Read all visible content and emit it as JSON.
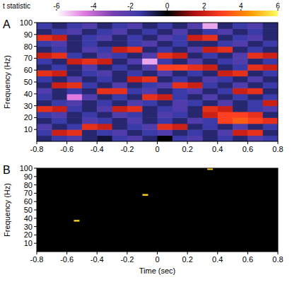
{
  "chart_data": [
    {
      "type": "heatmap",
      "title": "A",
      "ylabel": "Frequency (Hz)",
      "xlim": [
        -0.8,
        0.8
      ],
      "ylim": [
        0,
        100
      ],
      "xticks": [
        -0.8,
        -0.6,
        -0.4,
        -0.2,
        0,
        0.2,
        0.4,
        0.6,
        0.8
      ],
      "yticks": [
        10,
        20,
        30,
        40,
        50,
        60,
        70,
        80,
        90,
        100
      ],
      "x": [
        -0.75,
        -0.65,
        -0.55,
        -0.45,
        -0.35,
        -0.25,
        -0.15,
        -0.05,
        0.05,
        0.15,
        0.25,
        0.35,
        0.45,
        0.55,
        0.65,
        0.75
      ],
      "y": [
        2.5,
        7.5,
        12.5,
        17.5,
        22.5,
        27.5,
        32.5,
        37.5,
        42.5,
        47.5,
        52.5,
        57.5,
        62.5,
        67.5,
        72.5,
        77.5,
        82.5,
        87.5,
        92.5,
        97.5
      ],
      "cells": [
        [
          -1,
          -1.5,
          -2,
          -1,
          -0.5,
          -1.5,
          -2,
          -1,
          0,
          -1.5,
          -2,
          -1,
          -1.5,
          -1,
          -2,
          -1.5
        ],
        [
          -1.5,
          2,
          2.5,
          -1,
          -1.5,
          -2,
          -1,
          -1.5,
          -2,
          -1,
          -1.5,
          -1,
          -2,
          2,
          2.5,
          -1
        ],
        [
          -2,
          -1,
          -1.5,
          2.5,
          2,
          -1,
          -1.5,
          -2,
          2.5,
          2,
          -1,
          -1.5,
          -1,
          -2,
          -1,
          -1.5
        ],
        [
          -1,
          -1.5,
          -1,
          -2,
          -1.5,
          -1,
          -2,
          -1,
          -1.5,
          -1,
          -2,
          -1.5,
          3,
          3.5,
          3,
          2.5
        ],
        [
          -1.5,
          -2,
          -1,
          -1.5,
          -1,
          -2,
          -1.5,
          -1,
          -2,
          -1.5,
          -1,
          2,
          3,
          3,
          2.5,
          -1
        ],
        [
          2.5,
          2,
          -1.5,
          -1,
          -2,
          2,
          2.5,
          -1,
          -1.5,
          -2,
          -1,
          2.5,
          2,
          -1,
          -1.5,
          -2
        ],
        [
          -1,
          -1.5,
          -2,
          -1,
          -1.5,
          -1,
          -2,
          -1.5,
          -1,
          -2,
          -1.5,
          -1,
          -2,
          -1,
          -1.5,
          2
        ],
        [
          -1.5,
          -1,
          -4.5,
          -2,
          -1,
          -1.5,
          -1,
          2.5,
          2,
          -1.5,
          -1,
          -2,
          -1,
          -1.5,
          -1,
          -1.5
        ],
        [
          -2,
          -1,
          -1.5,
          -1,
          2.5,
          2.5,
          -1.5,
          -2,
          -1,
          -1.5,
          -2,
          -1,
          -1.5,
          2,
          2.5,
          -1
        ],
        [
          -1,
          2,
          2.5,
          -1.5,
          -1,
          -2,
          -1,
          -1.5,
          -2,
          2.5,
          2,
          -1.5,
          -1,
          -2,
          -1,
          -1.5
        ],
        [
          -1.5,
          -1,
          -2,
          -1,
          -1.5,
          -1,
          2,
          2.5,
          -1,
          -1.5,
          -1,
          -2,
          -1.5,
          -1,
          -2,
          -1
        ],
        [
          2.5,
          2,
          -1,
          -1.5,
          -2,
          -1,
          -1.5,
          -1,
          -2,
          -1,
          -1.5,
          -1,
          2,
          2.5,
          -1,
          -1.5
        ],
        [
          -1,
          -1.5,
          -1,
          -2,
          -1,
          -1.5,
          -1,
          -2,
          3,
          3,
          2.5,
          2,
          -1,
          -1.5,
          2.5,
          2
        ],
        [
          -1.5,
          -1,
          2,
          2.5,
          2,
          -1,
          -2,
          -5,
          -1.5,
          -1,
          -2,
          -1,
          -1.5,
          -2,
          -1,
          -1.5
        ],
        [
          2,
          2.5,
          -1.5,
          -1,
          -2,
          -1.5,
          -1,
          -2,
          2.5,
          2,
          -1,
          -1.5,
          -1,
          -2,
          2.5,
          2
        ],
        [
          -1,
          -1.5,
          -1,
          -2,
          -1.5,
          2,
          2.5,
          -1,
          -1.5,
          -1,
          -2,
          2,
          2.5,
          -1,
          -1.5,
          -1
        ],
        [
          -1.5,
          -2,
          -1,
          -1.5,
          -1,
          -1,
          -1.5,
          -2,
          -1,
          -1.5,
          -1,
          -1,
          -1.5,
          -2,
          -1,
          -1.5
        ],
        [
          2.5,
          2,
          -1,
          -1.5,
          -2,
          -1,
          -1.5,
          -1,
          -2,
          -1.5,
          2,
          2.5,
          -1,
          -1.5,
          -2,
          -1
        ],
        [
          -1,
          -1.5,
          -2,
          -1,
          -1.5,
          -2,
          -1,
          -1.5,
          -1,
          -2,
          -1,
          -1.5,
          -2,
          -1,
          -1.5,
          -1
        ],
        [
          -1.5,
          -1,
          -1.5,
          -2,
          -1,
          -1.5,
          -2,
          -1,
          -1.5,
          -1,
          -2,
          -5,
          -1,
          -1.5,
          -2,
          -1
        ]
      ],
      "colorbar": {
        "title": "t statistic",
        "range": [
          -6,
          6
        ],
        "ticks": [
          -6,
          -4,
          -2,
          0,
          2,
          4,
          6
        ]
      }
    },
    {
      "type": "scatter",
      "title": "B",
      "ylabel": "Frequency (Hz)",
      "xlabel": "Time (sec)",
      "xlim": [
        -0.8,
        0.8
      ],
      "ylim": [
        0,
        100
      ],
      "xticks": [
        -0.8,
        -0.6,
        -0.4,
        -0.2,
        0,
        0.2,
        0.4,
        0.6,
        0.8
      ],
      "yticks": [
        10,
        20,
        30,
        40,
        50,
        60,
        70,
        80,
        90,
        100
      ],
      "x": [
        -0.535,
        -0.08,
        0.35
      ],
      "values": [
        37,
        68,
        99
      ],
      "color": "#ffd21e",
      "marker": "dash"
    }
  ]
}
